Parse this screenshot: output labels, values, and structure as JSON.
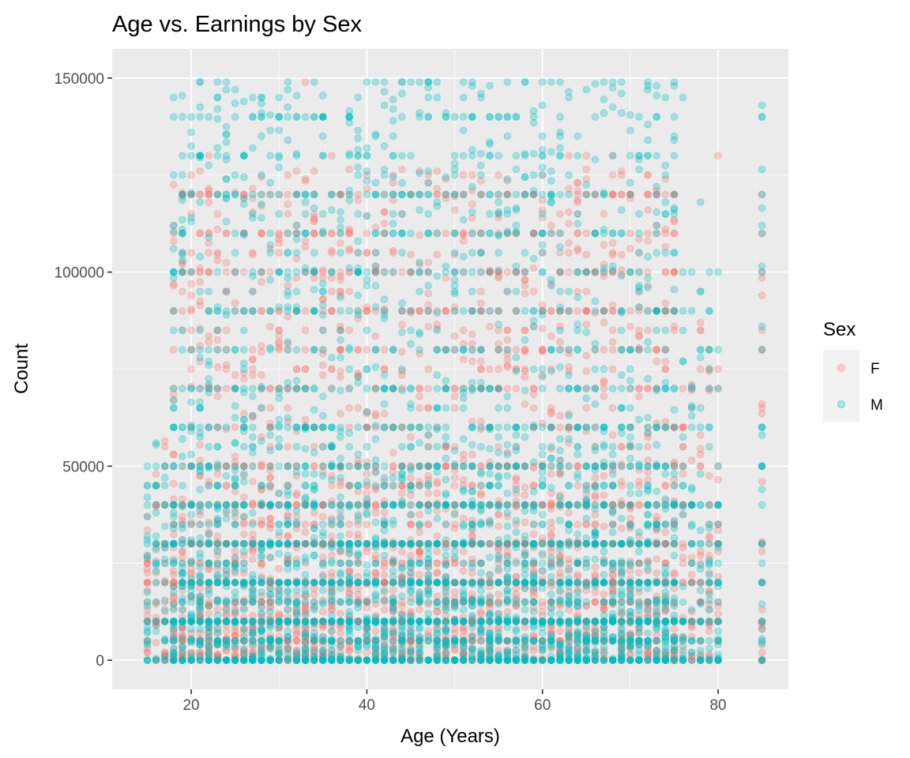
{
  "chart_data": {
    "type": "scatter",
    "title": "Age vs. Earnings by Sex",
    "xlabel": "Age (Years)",
    "ylabel": "Count",
    "xlim": [
      11,
      88
    ],
    "ylim": [
      -7500,
      157500
    ],
    "x_ticks": [
      20,
      40,
      60,
      80
    ],
    "y_ticks": [
      0,
      50000,
      100000,
      150000
    ],
    "x_tick_labels": [
      "20",
      "40",
      "60",
      "80"
    ],
    "y_tick_labels": [
      "0",
      "50000",
      "100000",
      "150000"
    ],
    "grid": true,
    "background": "#ebebeb",
    "point_opacity": 0.3,
    "legend": {
      "title": "Sex",
      "position": "right",
      "entries": [
        {
          "label": "F",
          "color": "#f8766d"
        },
        {
          "label": "M",
          "color": "#00bfc4"
        }
      ]
    },
    "series": [
      {
        "name": "F",
        "color": "#f8766d",
        "age_range": [
          15,
          85
        ],
        "earnings_range": [
          0,
          149000
        ],
        "points": [
          [
            15,
            2000
          ],
          [
            16,
            9000
          ],
          [
            17,
            15000
          ],
          [
            18,
            22000
          ],
          [
            19,
            8000
          ],
          [
            20,
            30000
          ],
          [
            22,
            12000
          ],
          [
            25,
            26000
          ],
          [
            28,
            40000
          ],
          [
            30,
            18000
          ],
          [
            33,
            62000
          ],
          [
            35,
            9000
          ],
          [
            38,
            45000
          ],
          [
            40,
            15000
          ],
          [
            42,
            20000
          ],
          [
            45,
            12000
          ],
          [
            47,
            55000
          ],
          [
            50,
            25000
          ],
          [
            52,
            10000
          ],
          [
            55,
            70000
          ],
          [
            58,
            30000
          ],
          [
            60,
            14000
          ],
          [
            62,
            48000
          ],
          [
            65,
            35000
          ],
          [
            68,
            20000
          ],
          [
            70,
            40000
          ],
          [
            72,
            12000
          ],
          [
            75,
            60000
          ],
          [
            78,
            15000
          ],
          [
            80,
            75000
          ],
          [
            85,
            65000
          ],
          [
            85,
            8000
          ],
          [
            33,
            149000
          ],
          [
            50,
            120000
          ],
          [
            75,
            120000
          ],
          [
            80,
            130000
          ]
        ]
      },
      {
        "name": "M",
        "color": "#00bfc4",
        "age_range": [
          15,
          85
        ],
        "earnings_range": [
          0,
          149000
        ],
        "points": [
          [
            15,
            45000
          ],
          [
            16,
            38000
          ],
          [
            17,
            30000
          ],
          [
            18,
            112000
          ],
          [
            19,
            100000
          ],
          [
            20,
            130000
          ],
          [
            21,
            140000
          ],
          [
            22,
            80000
          ],
          [
            25,
            147000
          ],
          [
            28,
            145000
          ],
          [
            30,
            100000
          ],
          [
            35,
            140000
          ],
          [
            40,
            130000
          ],
          [
            45,
            149000
          ],
          [
            50,
            120000
          ],
          [
            55,
            140000
          ],
          [
            60,
            110000
          ],
          [
            65,
            147000
          ],
          [
            70,
            100000
          ],
          [
            72,
            148000
          ],
          [
            74,
            125000
          ],
          [
            76,
            145000
          ],
          [
            78,
            118000
          ],
          [
            80,
            100000
          ],
          [
            85,
            143000
          ],
          [
            85,
            120000
          ],
          [
            85,
            100000
          ],
          [
            85,
            80000
          ],
          [
            85,
            50000
          ],
          [
            85,
            20000
          ],
          [
            38,
            40000
          ],
          [
            48,
            60000
          ],
          [
            58,
            50000
          ],
          [
            68,
            45000
          ],
          [
            78,
            30000
          ],
          [
            80,
            10000
          ]
        ]
      }
    ]
  }
}
